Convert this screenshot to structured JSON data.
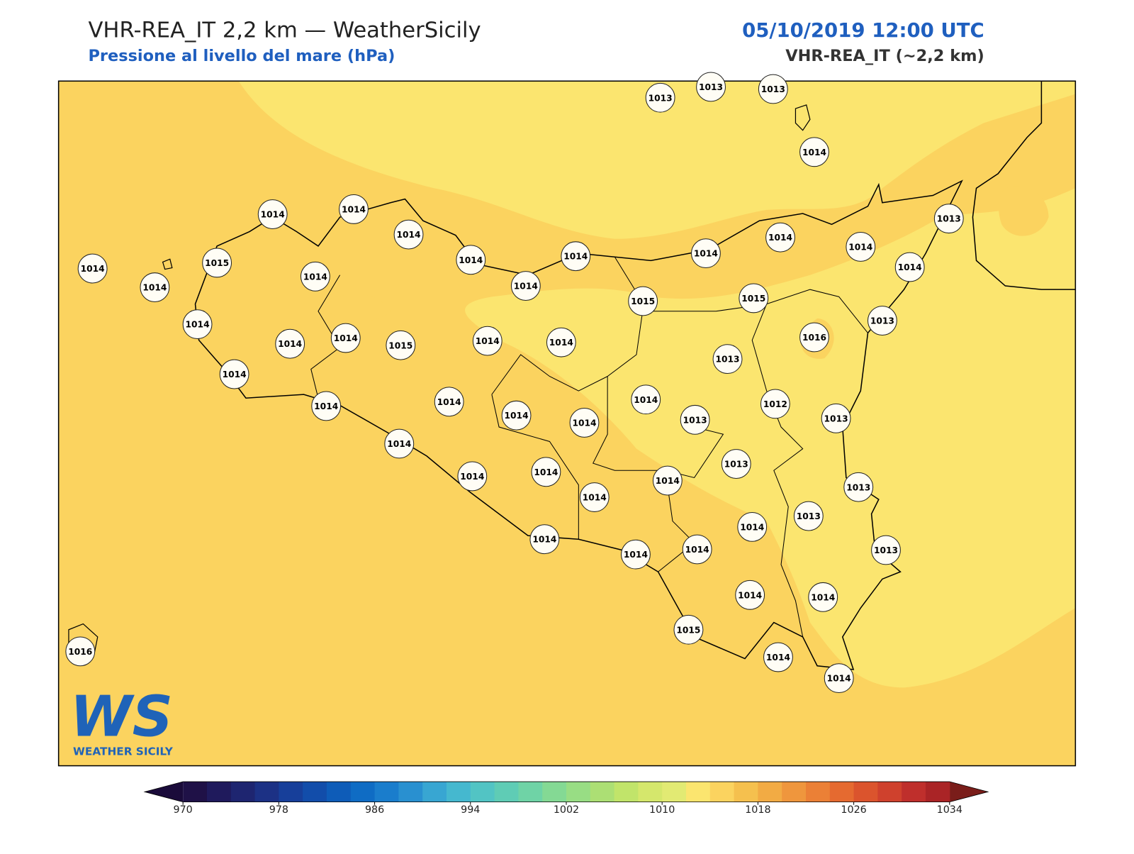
{
  "header": {
    "title": "VHR-REA_IT 2,2 km — WeatherSicily",
    "subtitle": "Pressione al livello del mare (hPa)",
    "datetime": "05/10/2019 12:00 UTC",
    "model": "VHR-REA_IT (~2,2 km)"
  },
  "stations": [
    1013,
    1013,
    1013,
    1014,
    1014,
    1014,
    1014,
    1014,
    1014,
    1014,
    1014,
    1014,
    1013,
    1014,
    1014,
    1015,
    1014,
    1014,
    1014,
    1015,
    1015,
    1013,
    1014,
    1014,
    1014,
    1015,
    1014,
    1014,
    1016,
    1013,
    1014,
    1014,
    1014,
    1014,
    1014,
    1014,
    1013,
    1012,
    1013,
    1014,
    1014,
    1014,
    1014,
    1014,
    1013,
    1013,
    1013,
    1014,
    1014,
    1014,
    1014,
    1013,
    1014,
    1014,
    1015,
    1014,
    1014,
    1016
  ],
  "colorbar": {
    "lim": [
      970,
      1034
    ],
    "ticks": [
      970,
      978,
      986,
      994,
      1002,
      1010,
      1018,
      1026,
      1034
    ],
    "colors": [
      "#1f1147",
      "#1f1a5c",
      "#1e2570",
      "#1c3185",
      "#173f9a",
      "#124daa",
      "#0e5cb8",
      "#0f6cc4",
      "#1a7dcc",
      "#2990d0",
      "#38a6d2",
      "#45b8cf",
      "#52c4c4",
      "#5fccb5",
      "#6fd3a6",
      "#84d994",
      "#98dd84",
      "#acdf74",
      "#c1e46a",
      "#d5e76c",
      "#e2ea73",
      "#fbe56f",
      "#fbd35f",
      "#f5c04e",
      "#f2ab44",
      "#ef963d",
      "#eb8036",
      "#e56a30",
      "#db542d",
      "#cf412d",
      "#bf2f2c",
      "#aa2426"
    ],
    "under": "#1a0b3a",
    "over": "#7a1d1a"
  },
  "logo": {
    "mark": "WS",
    "name": "WEATHER SICILY"
  }
}
